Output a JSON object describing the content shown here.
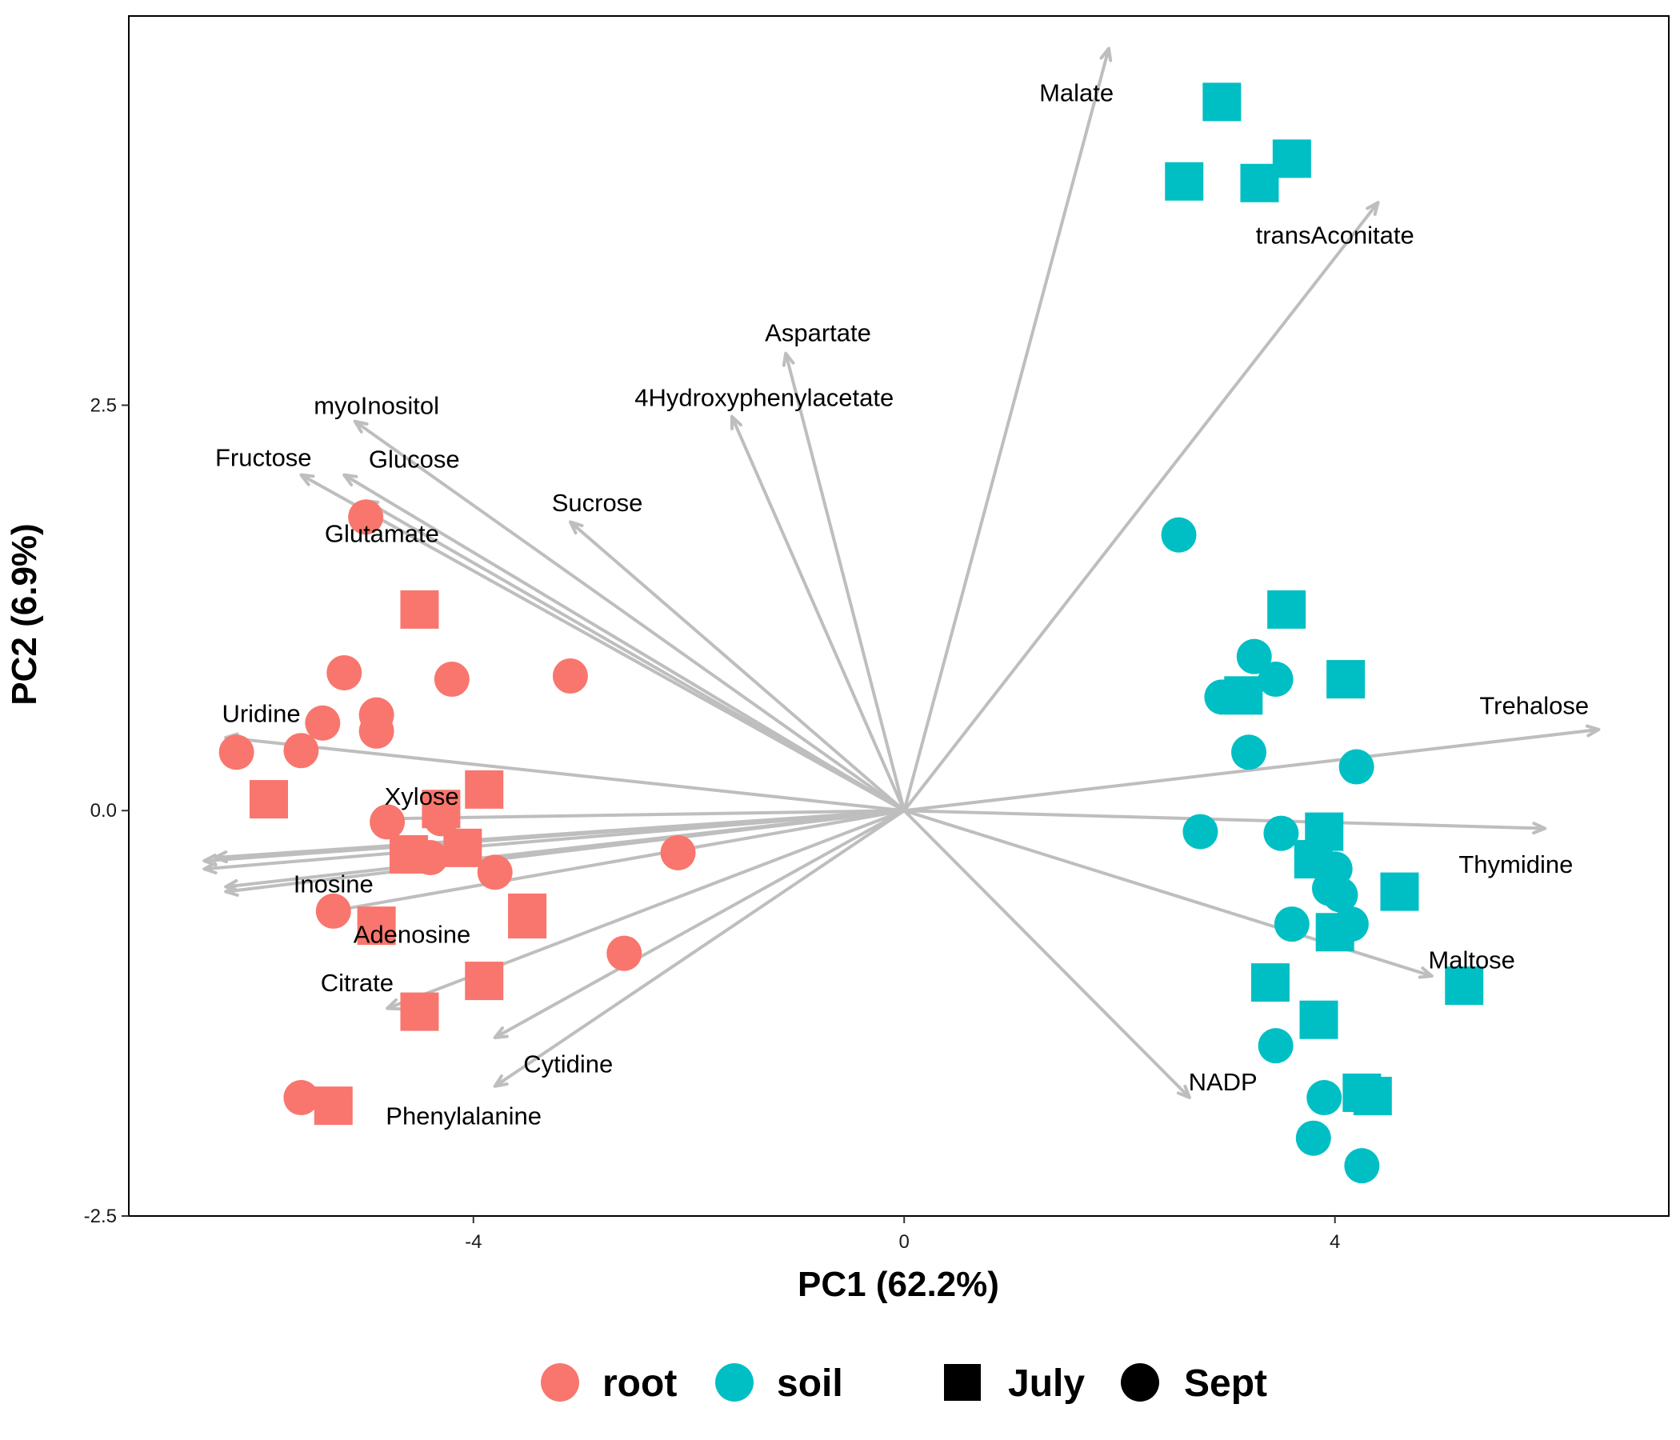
{
  "colors": {
    "root": "#F8766D",
    "soil": "#00BFC4",
    "arrow": "#BEBEBE",
    "shape_legend": "#000000"
  },
  "chart_data": {
    "type": "scatter",
    "subtype": "pca-biplot",
    "title": "",
    "xlabel": "PC1 (62.2%)",
    "ylabel": "PC2 (6.9%)",
    "xlim": [
      -7.2,
      7.1
    ],
    "ylim": [
      -2.5,
      4.9
    ],
    "x_ticks": [
      {
        "value": -4,
        "label": "-4"
      },
      {
        "value": 0,
        "label": "0"
      },
      {
        "value": 4,
        "label": "4"
      }
    ],
    "y_ticks": [
      {
        "value": 2.5,
        "label": "2.5"
      },
      {
        "value": 0,
        "label": "0.0"
      },
      {
        "value": -2.5,
        "label": "-2.5"
      }
    ],
    "grid": false,
    "legend": {
      "position": "bottom",
      "color_items": [
        {
          "key": "root",
          "label": "root"
        },
        {
          "key": "soil",
          "label": "soil"
        }
      ],
      "shape_items": [
        {
          "key": "July",
          "label": "July",
          "shape": "square"
        },
        {
          "key": "Sept",
          "label": "Sept",
          "shape": "circle"
        }
      ]
    },
    "points": [
      {
        "group": "root",
        "month": "Sept",
        "x": -5.0,
        "y": 1.81
      },
      {
        "group": "root",
        "month": "July",
        "x": -4.5,
        "y": 1.24
      },
      {
        "group": "root",
        "month": "Sept",
        "x": -5.2,
        "y": 0.85
      },
      {
        "group": "root",
        "month": "Sept",
        "x": -4.2,
        "y": 0.81
      },
      {
        "group": "root",
        "month": "Sept",
        "x": -3.1,
        "y": 0.83
      },
      {
        "group": "root",
        "month": "Sept",
        "x": -4.9,
        "y": 0.59
      },
      {
        "group": "root",
        "month": "Sept",
        "x": -5.4,
        "y": 0.54
      },
      {
        "group": "root",
        "month": "Sept",
        "x": -4.9,
        "y": 0.49
      },
      {
        "group": "root",
        "month": "Sept",
        "x": -6.2,
        "y": 0.36
      },
      {
        "group": "root",
        "month": "Sept",
        "x": -5.6,
        "y": 0.37
      },
      {
        "group": "root",
        "month": "July",
        "x": -5.9,
        "y": 0.07
      },
      {
        "group": "root",
        "month": "July",
        "x": -3.9,
        "y": 0.13
      },
      {
        "group": "root",
        "month": "Sept",
        "x": -4.8,
        "y": -0.07
      },
      {
        "group": "root",
        "month": "Sept",
        "x": -4.3,
        "y": -0.05
      },
      {
        "group": "root",
        "month": "July",
        "x": -4.3,
        "y": 0.01
      },
      {
        "group": "root",
        "month": "July",
        "x": -4.6,
        "y": -0.27
      },
      {
        "group": "root",
        "month": "July",
        "x": -4.1,
        "y": -0.23
      },
      {
        "group": "root",
        "month": "Sept",
        "x": -4.4,
        "y": -0.29
      },
      {
        "group": "root",
        "month": "Sept",
        "x": -3.8,
        "y": -0.38
      },
      {
        "group": "root",
        "month": "Sept",
        "x": -2.1,
        "y": -0.26
      },
      {
        "group": "root",
        "month": "Sept",
        "x": -5.3,
        "y": -0.62
      },
      {
        "group": "root",
        "month": "July",
        "x": -4.9,
        "y": -0.71
      },
      {
        "group": "root",
        "month": "July",
        "x": -3.5,
        "y": -0.63
      },
      {
        "group": "root",
        "month": "July",
        "x": -3.5,
        "y": -0.67
      },
      {
        "group": "root",
        "month": "Sept",
        "x": -2.6,
        "y": -0.88
      },
      {
        "group": "root",
        "month": "July",
        "x": -3.9,
        "y": -1.05
      },
      {
        "group": "root",
        "month": "July",
        "x": -4.5,
        "y": -1.24
      },
      {
        "group": "root",
        "month": "Sept",
        "x": -5.6,
        "y": -1.77
      },
      {
        "group": "root",
        "month": "July",
        "x": -5.3,
        "y": -1.82
      },
      {
        "group": "soil",
        "month": "July",
        "x": 2.95,
        "y": 4.37
      },
      {
        "group": "soil",
        "month": "July",
        "x": 3.6,
        "y": 4.02
      },
      {
        "group": "soil",
        "month": "July",
        "x": 2.6,
        "y": 3.88
      },
      {
        "group": "soil",
        "month": "July",
        "x": 3.3,
        "y": 3.87
      },
      {
        "group": "soil",
        "month": "Sept",
        "x": 2.55,
        "y": 1.7
      },
      {
        "group": "soil",
        "month": "July",
        "x": 3.55,
        "y": 1.24
      },
      {
        "group": "soil",
        "month": "Sept",
        "x": 3.25,
        "y": 0.95
      },
      {
        "group": "soil",
        "month": "Sept",
        "x": 3.45,
        "y": 0.81
      },
      {
        "group": "soil",
        "month": "July",
        "x": 4.1,
        "y": 0.81
      },
      {
        "group": "soil",
        "month": "Sept",
        "x": 2.95,
        "y": 0.7
      },
      {
        "group": "soil",
        "month": "July",
        "x": 3.15,
        "y": 0.71
      },
      {
        "group": "soil",
        "month": "Sept",
        "x": 3.2,
        "y": 0.36
      },
      {
        "group": "soil",
        "month": "Sept",
        "x": 4.2,
        "y": 0.27
      },
      {
        "group": "soil",
        "month": "Sept",
        "x": 2.75,
        "y": -0.13
      },
      {
        "group": "soil",
        "month": "Sept",
        "x": 3.5,
        "y": -0.14
      },
      {
        "group": "soil",
        "month": "July",
        "x": 3.9,
        "y": -0.13
      },
      {
        "group": "soil",
        "month": "July",
        "x": 3.8,
        "y": -0.3
      },
      {
        "group": "soil",
        "month": "Sept",
        "x": 4.0,
        "y": -0.36
      },
      {
        "group": "soil",
        "month": "Sept",
        "x": 3.95,
        "y": -0.48
      },
      {
        "group": "soil",
        "month": "Sept",
        "x": 4.05,
        "y": -0.52
      },
      {
        "group": "soil",
        "month": "July",
        "x": 4.6,
        "y": -0.5
      },
      {
        "group": "soil",
        "month": "Sept",
        "x": 3.6,
        "y": -0.7
      },
      {
        "group": "soil",
        "month": "Sept",
        "x": 4.15,
        "y": -0.7
      },
      {
        "group": "soil",
        "month": "July",
        "x": 4.0,
        "y": -0.75
      },
      {
        "group": "soil",
        "month": "July",
        "x": 5.2,
        "y": -1.08
      },
      {
        "group": "soil",
        "month": "July",
        "x": 3.4,
        "y": -1.06
      },
      {
        "group": "soil",
        "month": "July",
        "x": 3.85,
        "y": -1.29
      },
      {
        "group": "soil",
        "month": "Sept",
        "x": 3.45,
        "y": -1.45
      },
      {
        "group": "soil",
        "month": "July",
        "x": 4.25,
        "y": -1.74
      },
      {
        "group": "soil",
        "month": "July",
        "x": 4.35,
        "y": -1.76
      },
      {
        "group": "soil",
        "month": "Sept",
        "x": 3.9,
        "y": -1.77
      },
      {
        "group": "soil",
        "month": "Sept",
        "x": 3.8,
        "y": -2.02
      },
      {
        "group": "soil",
        "month": "Sept",
        "x": 4.25,
        "y": -2.19
      }
    ],
    "loadings": [
      {
        "name": "Malate",
        "x": 1.9,
        "y": 4.7,
        "label_x": 1.6,
        "label_y": 4.43
      },
      {
        "name": "transAconitate",
        "x": 4.4,
        "y": 3.75,
        "label_x": 4.0,
        "label_y": 3.55
      },
      {
        "name": "Aspartate",
        "x": -1.1,
        "y": 2.82,
        "label_x": -0.8,
        "label_y": 2.95
      },
      {
        "name": "4Hydroxyphenylacetate",
        "x": -1.6,
        "y": 2.43,
        "label_x": -1.3,
        "label_y": 2.55
      },
      {
        "name": "myoInositol",
        "x": -5.1,
        "y": 2.4,
        "label_x": -4.9,
        "label_y": 2.5
      },
      {
        "name": "Glucose",
        "x": -5.2,
        "y": 2.07,
        "label_x": -4.55,
        "label_y": 2.17
      },
      {
        "name": "Fructose",
        "x": -5.6,
        "y": 2.07,
        "label_x": -5.95,
        "label_y": 2.18
      },
      {
        "name": "Sucrose",
        "x": -3.1,
        "y": 1.78,
        "label_x": -2.85,
        "label_y": 1.9
      },
      {
        "name": "Glutamate",
        "x": -5.0,
        "y": 1.91,
        "label_x": -4.85,
        "label_y": 1.71
      },
      {
        "name": "Uridine",
        "x": -6.3,
        "y": 0.45,
        "label_x": -5.97,
        "label_y": 0.6
      },
      {
        "name": "Xylose",
        "x": -4.8,
        "y": -0.05,
        "label_x": -4.48,
        "label_y": 0.09
      },
      {
        "name": "Inosine",
        "x": -6.3,
        "y": -0.5,
        "label_x": -5.3,
        "label_y": -0.45
      },
      {
        "name": "Adenosine",
        "x": -5.4,
        "y": -0.63,
        "label_x": -4.57,
        "label_y": -0.76
      },
      {
        "name": "Citrate",
        "x": -4.8,
        "y": -1.22,
        "label_x": -5.08,
        "label_y": -1.06
      },
      {
        "name": "Cytidine",
        "x": -3.8,
        "y": -1.4,
        "label_x": -3.12,
        "label_y": -1.56
      },
      {
        "name": "Phenylalanine",
        "x": -3.8,
        "y": -1.7,
        "label_x": -4.09,
        "label_y": -1.88
      },
      {
        "name": "Trehalose",
        "x": 6.45,
        "y": 0.5,
        "label_x": 5.85,
        "label_y": 0.65
      },
      {
        "name": "Thymidine",
        "x": 5.95,
        "y": -0.11,
        "label_x": 5.68,
        "label_y": -0.33
      },
      {
        "name": "Maltose",
        "x": 4.9,
        "y": -1.02,
        "label_x": 5.27,
        "label_y": -0.92
      },
      {
        "name": "NADP",
        "x": 2.65,
        "y": -1.77,
        "label_x": 2.96,
        "label_y": -1.67
      }
    ],
    "unlabeled_loadings": [
      {
        "x": -6.5,
        "y": -0.31
      },
      {
        "x": -6.4,
        "y": -0.29
      },
      {
        "x": -6.5,
        "y": -0.36
      },
      {
        "x": -6.3,
        "y": -0.47
      }
    ]
  }
}
